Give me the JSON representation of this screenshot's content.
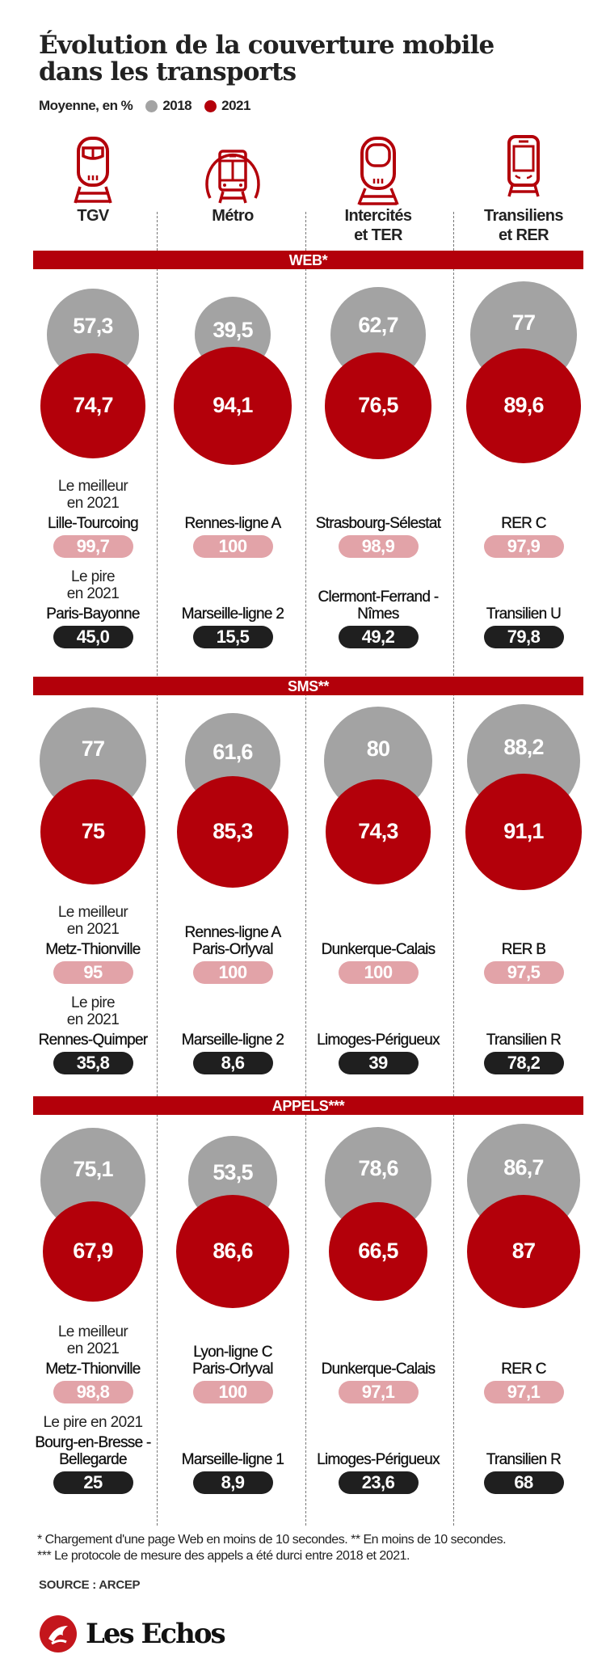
{
  "title": [
    "Évolution de la couverture mobile",
    "dans les transports"
  ],
  "legend": {
    "label": "Moyenne, en %",
    "series": [
      {
        "name": "2018",
        "color": "#a3a3a3"
      },
      {
        "name": "2021",
        "color": "#b3000a"
      }
    ]
  },
  "columns": [
    {
      "name": [
        "TGV"
      ],
      "icon": "tgv-train-icon"
    },
    {
      "name": [
        "Métro"
      ],
      "icon": "metro-icon"
    },
    {
      "name": [
        "Intercités",
        "et TER"
      ],
      "icon": "intercites-train-icon"
    },
    {
      "name": [
        "Transiliens",
        "et RER"
      ],
      "icon": "transilien-train-icon"
    }
  ],
  "chart_data": {
    "type": "bubble-comparison",
    "unit": "%",
    "series": [
      "2018",
      "2021"
    ],
    "sections": [
      {
        "title": "WEB*",
        "columns": [
          {
            "v2018": "57,3",
            "v2021": "74,7",
            "best_label": [
              "Le meilleur",
              "en 2021"
            ],
            "best_name": [
              "Lille-Tourcoing"
            ],
            "best_value": "99,7",
            "worst_label": [
              "Le pire",
              "en 2021"
            ],
            "worst_name": [
              "Paris-Bayonne"
            ],
            "worst_value": "45,0"
          },
          {
            "v2018": "39,5",
            "v2021": "94,1",
            "best_label": [],
            "best_name": [
              "Rennes-ligne A"
            ],
            "best_value": "100",
            "worst_label": [],
            "worst_name": [
              "Marseille-ligne 2"
            ],
            "worst_value": "15,5"
          },
          {
            "v2018": "62,7",
            "v2021": "76,5",
            "best_label": [],
            "best_name": [
              "Strasbourg-Sélestat"
            ],
            "best_value": "98,9",
            "worst_label": [],
            "worst_name": [
              "Clermont-Ferrand -",
              "Nîmes"
            ],
            "worst_value": "49,2"
          },
          {
            "v2018": "77",
            "v2021": "89,6",
            "best_label": [],
            "best_name": [
              "RER C"
            ],
            "best_value": "97,9",
            "worst_label": [],
            "worst_name": [
              "Transilien U"
            ],
            "worst_value": "79,8"
          }
        ]
      },
      {
        "title": "SMS**",
        "columns": [
          {
            "v2018": "77",
            "v2021": "75",
            "best_label": [
              "Le meilleur",
              "en 2021"
            ],
            "best_name": [
              "Metz-Thionville"
            ],
            "best_value": "95",
            "worst_label": [
              "Le pire",
              "en 2021"
            ],
            "worst_name": [
              "Rennes-Quimper"
            ],
            "worst_value": "35,8"
          },
          {
            "v2018": "61,6",
            "v2021": "85,3",
            "best_label": [],
            "best_name": [
              "Rennes-ligne A",
              "Paris-Orlyval"
            ],
            "best_value": "100",
            "worst_label": [],
            "worst_name": [
              "Marseille-ligne 2"
            ],
            "worst_value": "8,6"
          },
          {
            "v2018": "80",
            "v2021": "74,3",
            "best_label": [],
            "best_name": [
              "Dunkerque-Calais"
            ],
            "best_value": "100",
            "worst_label": [],
            "worst_name": [
              "Limoges-Périgueux"
            ],
            "worst_value": "39"
          },
          {
            "v2018": "88,2",
            "v2021": "91,1",
            "best_label": [],
            "best_name": [
              "RER B"
            ],
            "best_value": "97,5",
            "worst_label": [],
            "worst_name": [
              "Transilien R"
            ],
            "worst_value": "78,2"
          }
        ]
      },
      {
        "title": "APPELS***",
        "columns": [
          {
            "v2018": "75,1",
            "v2021": "67,9",
            "best_label": [
              "Le meilleur",
              "en 2021"
            ],
            "best_name": [
              "Metz-Thionville"
            ],
            "best_value": "98,8",
            "worst_label": [
              "Le pire en 2021"
            ],
            "worst_name": [
              "Bourg-en-Bresse -",
              "Bellegarde"
            ],
            "worst_value": "25"
          },
          {
            "v2018": "53,5",
            "v2021": "86,6",
            "best_label": [],
            "best_name": [
              "Lyon-ligne C",
              "Paris-Orlyval"
            ],
            "best_value": "100",
            "worst_label": [],
            "worst_name": [
              "Marseille-ligne 1"
            ],
            "worst_value": "8,9"
          },
          {
            "v2018": "78,6",
            "v2021": "66,5",
            "best_label": [],
            "best_name": [
              "Dunkerque-Calais"
            ],
            "best_value": "97,1",
            "worst_label": [],
            "worst_name": [
              "Limoges-Périgueux"
            ],
            "worst_value": "23,6"
          },
          {
            "v2018": "86,7",
            "v2021": "87",
            "best_label": [],
            "best_name": [
              "RER C"
            ],
            "best_value": "97,1",
            "worst_label": [],
            "worst_name": [
              "Transilien R"
            ],
            "worst_value": "68"
          }
        ]
      }
    ]
  },
  "footnotes": [
    "* Chargement d'une page Web en moins de 10 secondes.  ** En moins de 10 secondes.",
    "*** Le protocole de mesure des appels a été durci entre 2018 et 2021."
  ],
  "source": "SOURCE : ARCEP",
  "brand": "Les Echos",
  "colors": {
    "accent": "#b3000a",
    "gray": "#a3a3a3",
    "best_pill": "#e2a3a8",
    "worst_pill": "#1f1f1f"
  }
}
